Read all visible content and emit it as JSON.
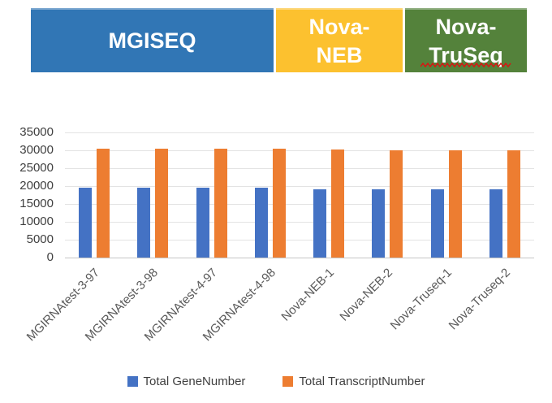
{
  "header": {
    "cells": [
      {
        "label": "MGISEQ",
        "color": "#3176B5"
      },
      {
        "label": "Nova-\nNEB",
        "color": "#FCC12F"
      },
      {
        "label": "Nova-\nTruSeq",
        "color": "#54823B",
        "spellcheck_underline": true
      }
    ]
  },
  "chart_data": {
    "type": "bar",
    "title": "",
    "categories": [
      "MGIRNAtest-3-97",
      "MGIRNAtest-3-98",
      "MGIRNAtest-4-97",
      "MGIRNAtest-4-98",
      "Nova-NEB-1",
      "Nova-NEB-2",
      "Nova-Truseq-1",
      "Nova-Truseq-2"
    ],
    "series": [
      {
        "name": "Total GeneNumber",
        "color": "#4472C4",
        "values": [
          19500,
          19500,
          19500,
          19500,
          19000,
          19000,
          19200,
          19100
        ]
      },
      {
        "name": "Total TranscriptNumber",
        "color": "#ED7D31",
        "values": [
          30500,
          30500,
          30400,
          30400,
          30200,
          30100,
          30000,
          30000
        ]
      }
    ],
    "xlabel": "",
    "ylabel": "",
    "ylim": [
      0,
      35000
    ],
    "ytick_step": 5000,
    "grid": true,
    "legend_position": "bottom"
  },
  "colors": {
    "gridline": "#E3E3E3",
    "axis_line": "#C6C6C6",
    "tick_label": "#3F3F3F",
    "x_label": "#595959",
    "legend_text": "#3F3F3F",
    "spellcheck_wave": "#E01010"
  }
}
